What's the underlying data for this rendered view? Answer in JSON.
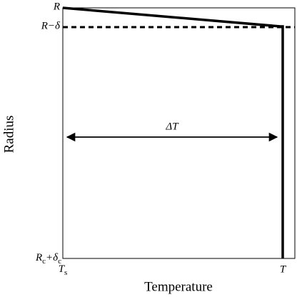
{
  "axes": {
    "y_title": "Radius",
    "x_title": "Temperature",
    "y_labels": [
      [
        "R"
      ],
      [
        "R−δ"
      ],
      [
        "R",
        "c",
        "+δ",
        "c"
      ]
    ],
    "x_labels": [
      [
        "T",
        "s"
      ],
      [
        "T"
      ]
    ]
  },
  "annotation": "ΔT"
}
